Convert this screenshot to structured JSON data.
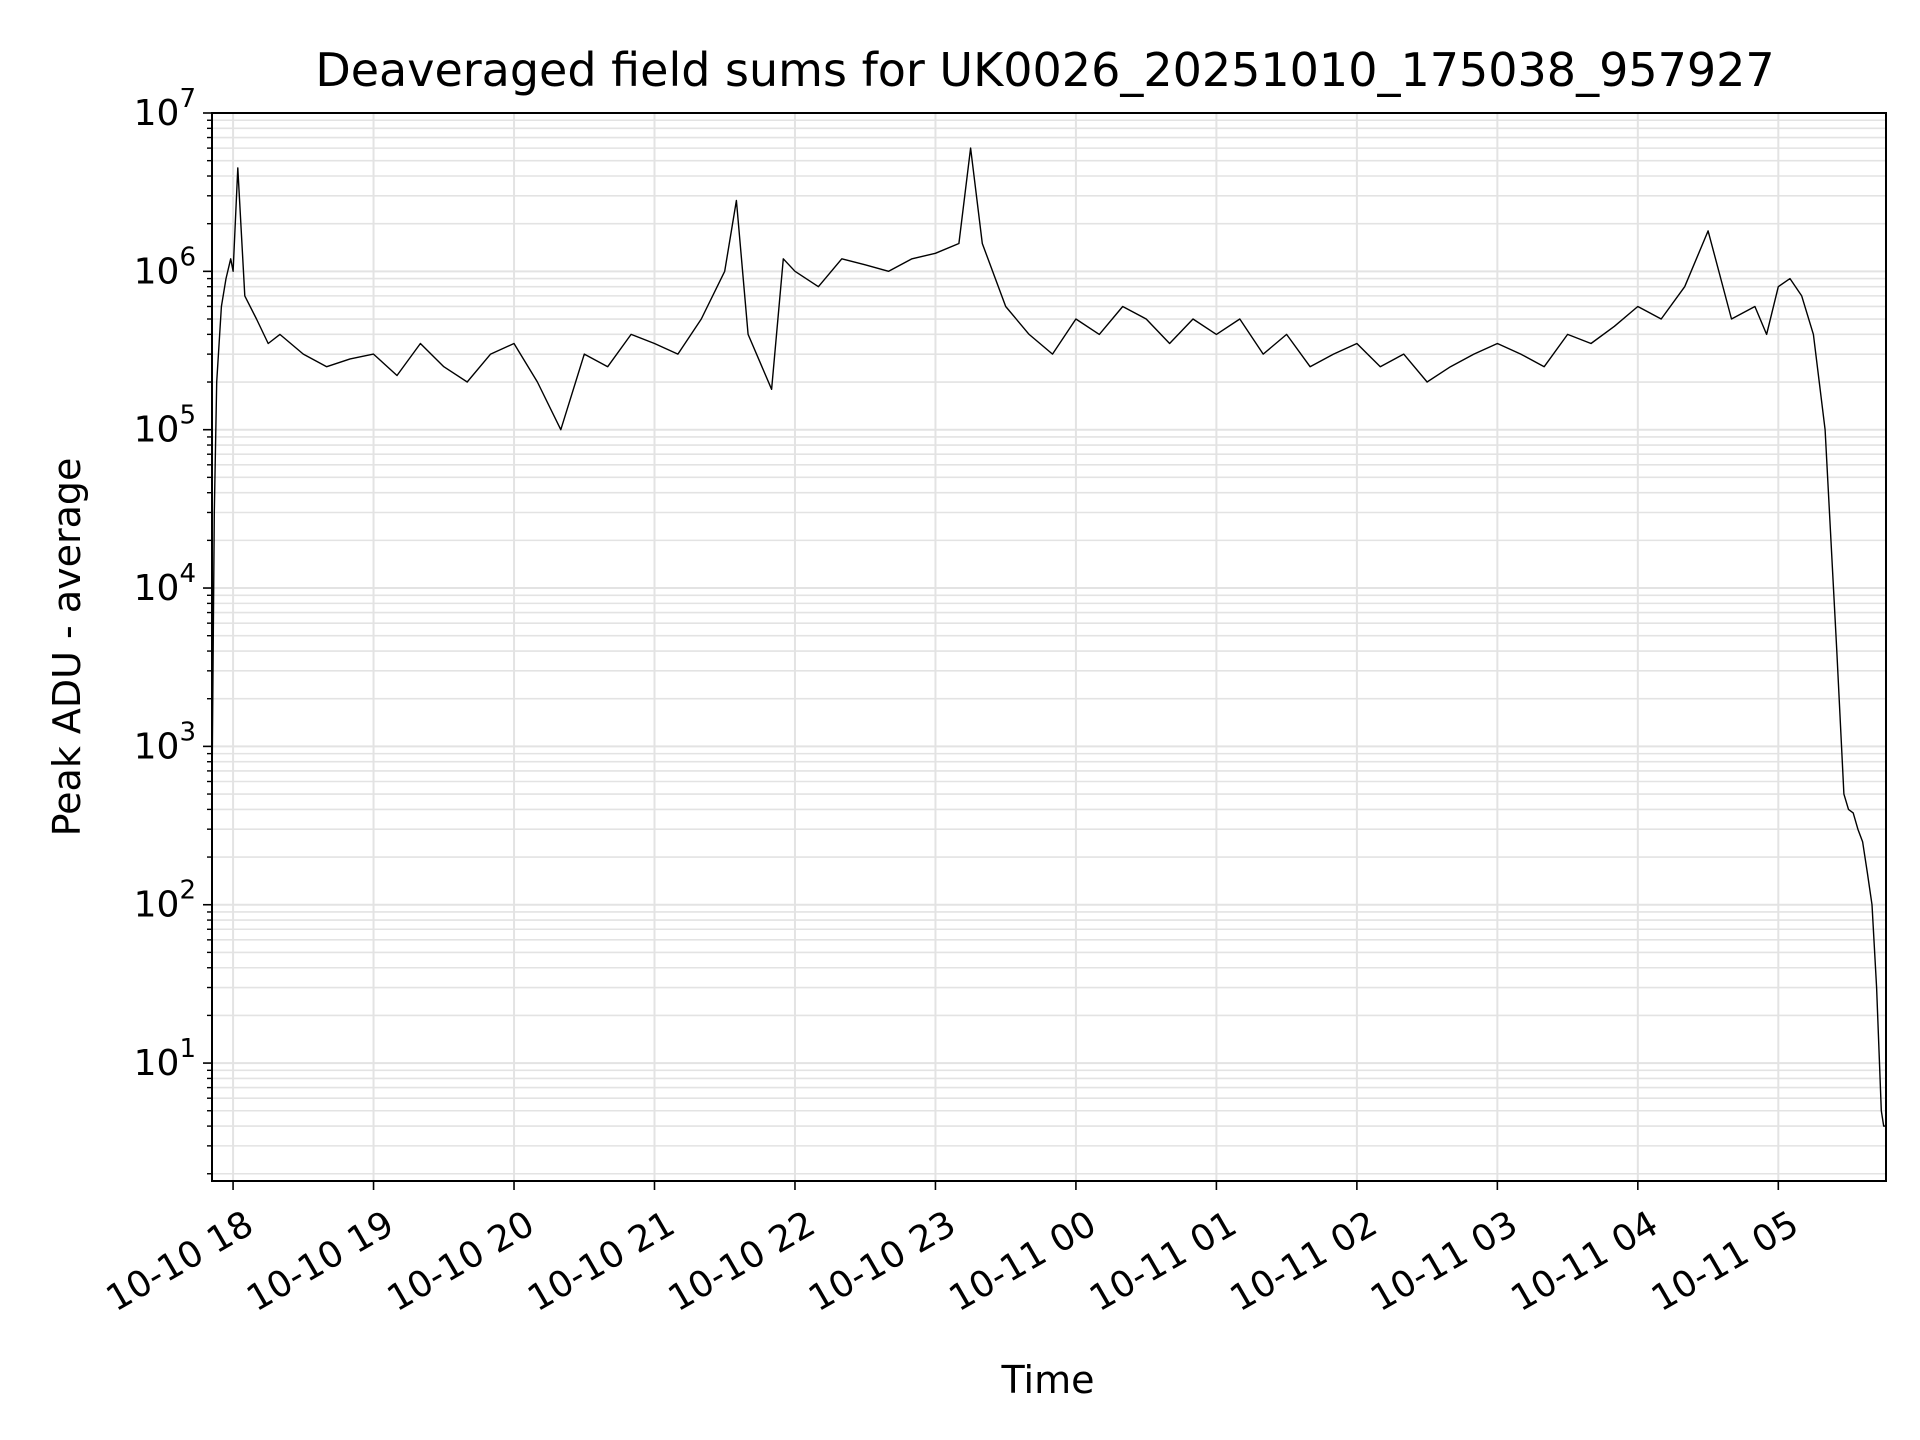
{
  "chart_data": {
    "type": "line",
    "title": "Deaveraged field sums for UK0026_20251010_175038_957927",
    "xlabel": "Time",
    "ylabel": "Peak ADU - average",
    "yscale": "log",
    "grid": true,
    "legend": "none",
    "line_color": "#000000",
    "grid_color": "#e3e3e3",
    "xlim": [
      "2025-10-10 17:51",
      "2025-10-11 05:46"
    ],
    "ylim": [
      1.8,
      10000000
    ],
    "x_ticks": [
      {
        "value": "2025-10-10 18:00",
        "label": "10-10 18"
      },
      {
        "value": "2025-10-10 19:00",
        "label": "10-10 19"
      },
      {
        "value": "2025-10-10 20:00",
        "label": "10-10 20"
      },
      {
        "value": "2025-10-10 21:00",
        "label": "10-10 21"
      },
      {
        "value": "2025-10-10 22:00",
        "label": "10-10 22"
      },
      {
        "value": "2025-10-10 23:00",
        "label": "10-10 23"
      },
      {
        "value": "2025-10-11 00:00",
        "label": "10-11 00"
      },
      {
        "value": "2025-10-11 01:00",
        "label": "10-11 01"
      },
      {
        "value": "2025-10-11 02:00",
        "label": "10-11 02"
      },
      {
        "value": "2025-10-11 03:00",
        "label": "10-11 03"
      },
      {
        "value": "2025-10-11 04:00",
        "label": "10-11 04"
      },
      {
        "value": "2025-10-11 05:00",
        "label": "10-11 05"
      }
    ],
    "y_ticks": [
      {
        "value": 10,
        "base": "10",
        "exp": "1"
      },
      {
        "value": 100,
        "base": "10",
        "exp": "2"
      },
      {
        "value": 1000,
        "base": "10",
        "exp": "3"
      },
      {
        "value": 10000,
        "base": "10",
        "exp": "4"
      },
      {
        "value": 100000,
        "base": "10",
        "exp": "5"
      },
      {
        "value": 1000000,
        "base": "10",
        "exp": "6"
      },
      {
        "value": 10000000,
        "base": "10",
        "exp": "7"
      }
    ],
    "series": [
      {
        "x": [
          "2025-10-10 17:51",
          "2025-10-10 17:52",
          "2025-10-10 17:53",
          "2025-10-10 17:55",
          "2025-10-10 17:57",
          "2025-10-10 17:59",
          "2025-10-10 18:00",
          "2025-10-10 18:02",
          "2025-10-10 18:05",
          "2025-10-10 18:10",
          "2025-10-10 18:15",
          "2025-10-10 18:20",
          "2025-10-10 18:30",
          "2025-10-10 18:40",
          "2025-10-10 18:50",
          "2025-10-10 19:00",
          "2025-10-10 19:10",
          "2025-10-10 19:20",
          "2025-10-10 19:30",
          "2025-10-10 19:40",
          "2025-10-10 19:50",
          "2025-10-10 20:00",
          "2025-10-10 20:10",
          "2025-10-10 20:20",
          "2025-10-10 20:30",
          "2025-10-10 20:40",
          "2025-10-10 20:50",
          "2025-10-10 21:00",
          "2025-10-10 21:10",
          "2025-10-10 21:20",
          "2025-10-10 21:30",
          "2025-10-10 21:35",
          "2025-10-10 21:40",
          "2025-10-10 21:50",
          "2025-10-10 21:55",
          "2025-10-10 22:00",
          "2025-10-10 22:10",
          "2025-10-10 22:20",
          "2025-10-10 22:30",
          "2025-10-10 22:40",
          "2025-10-10 22:50",
          "2025-10-10 23:00",
          "2025-10-10 23:10",
          "2025-10-10 23:15",
          "2025-10-10 23:20",
          "2025-10-10 23:30",
          "2025-10-10 23:40",
          "2025-10-10 23:50",
          "2025-10-11 00:00",
          "2025-10-11 00:10",
          "2025-10-11 00:20",
          "2025-10-11 00:30",
          "2025-10-11 00:40",
          "2025-10-11 00:50",
          "2025-10-11 01:00",
          "2025-10-11 01:10",
          "2025-10-11 01:20",
          "2025-10-11 01:30",
          "2025-10-11 01:40",
          "2025-10-11 01:50",
          "2025-10-11 02:00",
          "2025-10-11 02:10",
          "2025-10-11 02:20",
          "2025-10-11 02:30",
          "2025-10-11 02:40",
          "2025-10-11 02:50",
          "2025-10-11 03:00",
          "2025-10-11 03:10",
          "2025-10-11 03:20",
          "2025-10-11 03:30",
          "2025-10-11 03:40",
          "2025-10-11 03:50",
          "2025-10-11 04:00",
          "2025-10-11 04:10",
          "2025-10-11 04:20",
          "2025-10-11 04:30",
          "2025-10-11 04:40",
          "2025-10-11 04:50",
          "2025-10-11 04:55",
          "2025-10-11 05:00",
          "2025-10-11 05:05",
          "2025-10-11 05:10",
          "2025-10-11 05:15",
          "2025-10-11 05:20",
          "2025-10-11 05:25",
          "2025-10-11 05:28",
          "2025-10-11 05:30",
          "2025-10-11 05:32",
          "2025-10-11 05:34",
          "2025-10-11 05:36",
          "2025-10-11 05:38",
          "2025-10-11 05:40",
          "2025-10-11 05:42",
          "2025-10-11 05:44",
          "2025-10-11 05:45",
          "2025-10-11 05:46"
        ],
        "y": [
          500,
          30000,
          200000,
          600000,
          900000,
          1200000,
          1000000,
          4500000,
          700000,
          500000,
          350000,
          400000,
          300000,
          250000,
          280000,
          300000,
          220000,
          350000,
          250000,
          200000,
          300000,
          350000,
          200000,
          100000,
          300000,
          250000,
          400000,
          350000,
          300000,
          500000,
          1000000,
          2800000,
          400000,
          180000,
          1200000,
          1000000,
          800000,
          1200000,
          1100000,
          1000000,
          1200000,
          1300000,
          1500000,
          6000000,
          1500000,
          600000,
          400000,
          300000,
          500000,
          400000,
          600000,
          500000,
          350000,
          500000,
          400000,
          500000,
          300000,
          400000,
          250000,
          300000,
          350000,
          250000,
          300000,
          200000,
          250000,
          300000,
          350000,
          300000,
          250000,
          400000,
          350000,
          450000,
          600000,
          500000,
          800000,
          1800000,
          500000,
          600000,
          400000,
          800000,
          900000,
          700000,
          400000,
          100000,
          4000,
          500,
          400,
          380,
          300,
          250,
          160,
          100,
          30,
          5,
          4,
          4
        ]
      }
    ]
  }
}
